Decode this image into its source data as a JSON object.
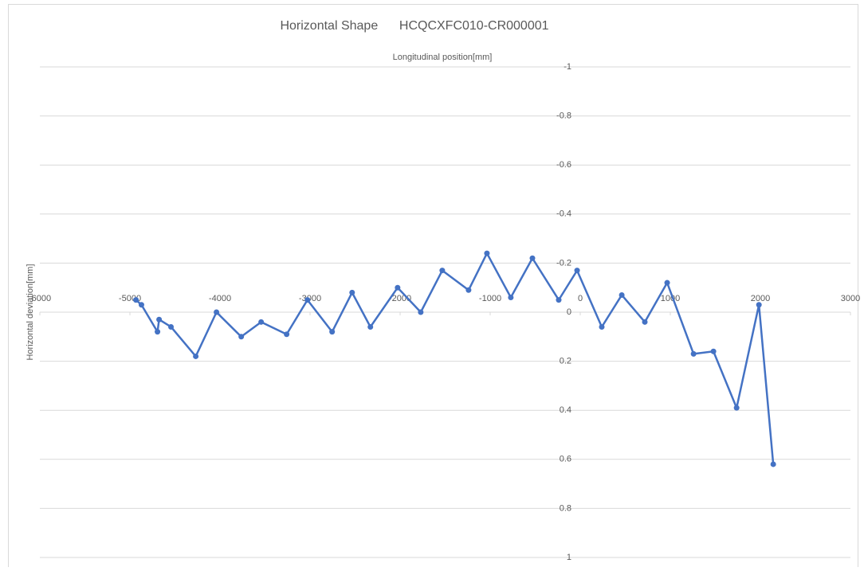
{
  "chart_data": {
    "type": "line",
    "title": "Horizontal Shape      HCQCXFC010-CR000001",
    "x_label": "Longitudinal position[mm]",
    "y_label": "Horizontal deviation[mm]",
    "x": [
      -4933,
      -4872,
      -4694,
      -4676,
      -4544,
      -4269,
      -4039,
      -3764,
      -3543,
      -3260,
      -3029,
      -2755,
      -2533,
      -2330,
      -2028,
      -1771,
      -1532,
      -1240,
      -1036,
      -771,
      -531,
      -239,
      -35,
      239,
      461,
      717,
      965,
      1258,
      1479,
      1736,
      1984,
      2143
    ],
    "series": [
      {
        "name": "Horizontal deviation",
        "color": "#4472c4",
        "values": [
          -0.05,
          -0.03,
          0.08,
          0.03,
          0.06,
          0.18,
          0,
          0.1,
          0.04,
          0.09,
          -0.05,
          0.08,
          -0.08,
          0.06,
          -0.1,
          0,
          -0.17,
          -0.09,
          -0.24,
          -0.06,
          -0.22,
          -0.05,
          -0.17,
          0.06,
          -0.07,
          0.04,
          -0.12,
          0.17,
          0.16,
          0.39,
          -0.03,
          0.62
        ]
      }
    ],
    "xlim": [
      -6000,
      3000
    ],
    "xticks": [
      -6000,
      -5000,
      -4000,
      -3000,
      -2000,
      -1000,
      0,
      1000,
      2000,
      3000
    ],
    "ylim": [
      -1,
      1
    ],
    "yticks": [
      -1,
      -0.8,
      -0.6,
      -0.4,
      -0.2,
      0,
      0.2,
      0.4,
      0.6,
      0.8,
      1
    ],
    "y_reversed": true,
    "grid": true
  }
}
